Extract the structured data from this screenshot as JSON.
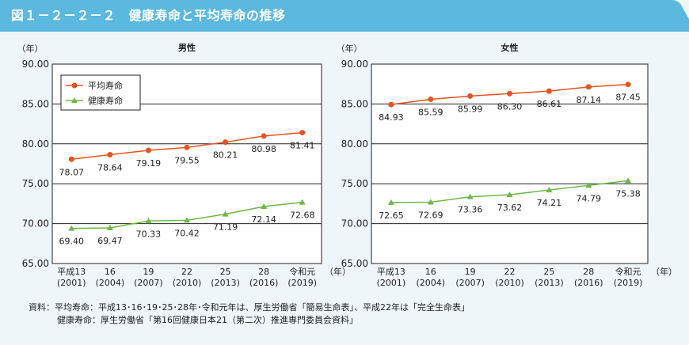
{
  "figure_title": "図１－２－２－２　健康寿命と平均寿命の推移",
  "chart_data": [
    {
      "type": "line",
      "title": "男性",
      "y_unit_label": "（年）",
      "x_unit_label": "（年）",
      "ylim": [
        65,
        90
      ],
      "yticks": [
        "90.00",
        "85.00",
        "80.00",
        "75.00",
        "70.00",
        "65.00"
      ],
      "ytick_values": [
        90,
        85,
        80,
        75,
        70,
        65
      ],
      "categories": [
        {
          "line1": "平成13",
          "line2": "(2001)"
        },
        {
          "line1": "16",
          "line2": "(2004)"
        },
        {
          "line1": "19",
          "line2": "(2007)"
        },
        {
          "line1": "22",
          "line2": "(2010)"
        },
        {
          "line1": "25",
          "line2": "(2013)"
        },
        {
          "line1": "28",
          "line2": "(2016)"
        },
        {
          "line1": "令和元",
          "line2": "(2019)"
        }
      ],
      "legend_position": "top-left",
      "series": [
        {
          "name": "平均寿命",
          "color": "#e65320",
          "marker": "circle",
          "values": [
            78.07,
            78.64,
            79.19,
            79.55,
            80.21,
            80.98,
            81.41
          ],
          "labels": [
            "78.07",
            "78.64",
            "79.19",
            "79.55",
            "80.21",
            "80.98",
            "81.41"
          ]
        },
        {
          "name": "健康寿命",
          "color": "#6cb845",
          "marker": "triangle",
          "values": [
            69.4,
            69.47,
            70.33,
            70.42,
            71.19,
            72.14,
            72.68
          ],
          "labels": [
            "69.40",
            "69.47",
            "70.33",
            "70.42",
            "71.19",
            "72.14",
            "72.68"
          ]
        }
      ]
    },
    {
      "type": "line",
      "title": "女性",
      "y_unit_label": "（年）",
      "x_unit_label": "（年）",
      "ylim": [
        65,
        90
      ],
      "yticks": [
        "90.00",
        "85.00",
        "80.00",
        "75.00",
        "70.00",
        "65.00"
      ],
      "ytick_values": [
        90,
        85,
        80,
        75,
        70,
        65
      ],
      "categories": [
        {
          "line1": "平成13",
          "line2": "(2001)"
        },
        {
          "line1": "16",
          "line2": "(2004)"
        },
        {
          "line1": "19",
          "line2": "(2007)"
        },
        {
          "line1": "22",
          "line2": "(2010)"
        },
        {
          "line1": "25",
          "line2": "(2013)"
        },
        {
          "line1": "28",
          "line2": "(2016)"
        },
        {
          "line1": "令和元",
          "line2": "(2019)"
        }
      ],
      "series": [
        {
          "name": "平均寿命",
          "color": "#e65320",
          "marker": "circle",
          "values": [
            84.93,
            85.59,
            85.99,
            86.3,
            86.61,
            87.14,
            87.45
          ],
          "labels": [
            "84.93",
            "85.59",
            "85.99",
            "86.30",
            "86.61",
            "87.14",
            "87.45"
          ]
        },
        {
          "name": "健康寿命",
          "color": "#6cb845",
          "marker": "triangle",
          "values": [
            72.65,
            72.69,
            73.36,
            73.62,
            74.21,
            74.79,
            75.38
          ],
          "labels": [
            "72.65",
            "72.69",
            "73.36",
            "73.62",
            "74.21",
            "74.79",
            "75.38"
          ]
        }
      ]
    }
  ],
  "source": {
    "line1": "資料：平均寿命：平成13･16･19･25･28年･令和元年は、厚生労働省「簡易生命表」、平成22年は「完全生命表」",
    "line2": "健康寿命：厚生労働省「第16回健康日本21（第二次）推進専門委員会資料」"
  }
}
